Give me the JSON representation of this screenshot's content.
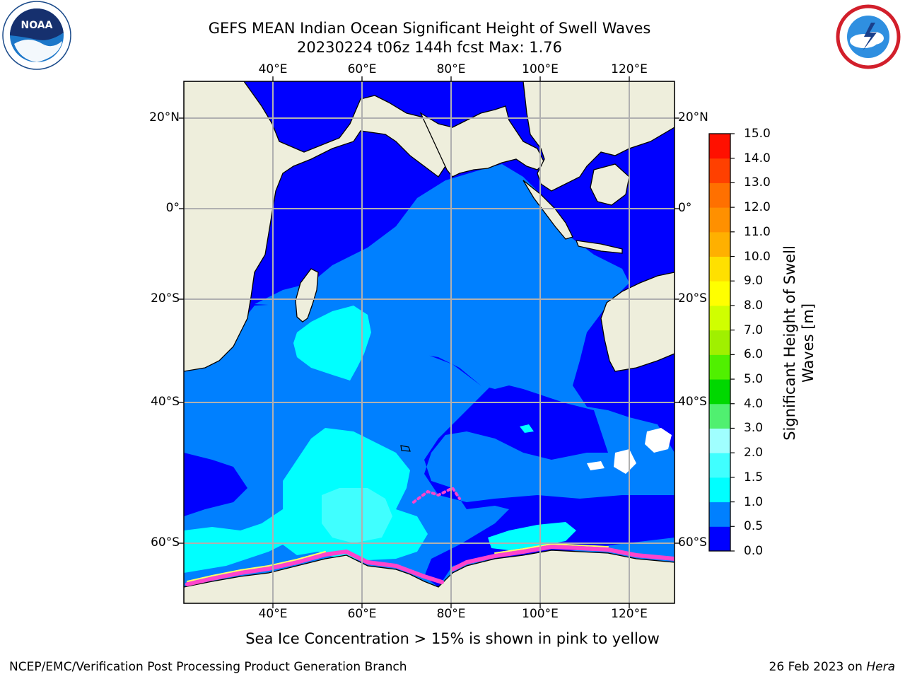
{
  "title_line1": "GEFS MEAN Indian Ocean Significant Height of Swell Waves",
  "title_line2": "20230224 t06z 144h fcst   Max: 1.76",
  "lon_ticks": [
    {
      "lon": 40,
      "label": "40°E"
    },
    {
      "lon": 60,
      "label": "60°E"
    },
    {
      "lon": 80,
      "label": "80°E"
    },
    {
      "lon": 100,
      "label": "100°E"
    },
    {
      "lon": 120,
      "label": "120°E"
    }
  ],
  "lat_ticks": [
    {
      "lat": 20,
      "label": "20°N"
    },
    {
      "lat": 0,
      "label": "0°"
    },
    {
      "lat": -20,
      "label": "20°S"
    },
    {
      "lat": -40,
      "label": "40°S"
    },
    {
      "lat": -60,
      "label": "60°S"
    }
  ],
  "colorbar": {
    "title_line1": "Significant Height of Swell",
    "title_line2": "Waves [m]",
    "labels": [
      "0.0",
      "0.5",
      "1.0",
      "1.5",
      "2.0",
      "3.0",
      "4.0",
      "5.0",
      "6.0",
      "7.0",
      "8.0",
      "9.0",
      "10.0",
      "11.0",
      "12.0",
      "13.0",
      "14.0",
      "15.0"
    ],
    "colors": [
      "#0000ff",
      "#0080ff",
      "#00ffff",
      "#40ffff",
      "#a0ffff",
      "#50f070",
      "#00d800",
      "#50f000",
      "#a0f000",
      "#d0ff00",
      "#ffff00",
      "#ffe000",
      "#ffb000",
      "#ff9000",
      "#ff7000",
      "#ff4000",
      "#ff1000"
    ]
  },
  "legend_colors": {
    "land": "#eeeedc",
    "band_0_0_5": "#0000ff",
    "band_0_5_1_0": "#0080ff",
    "band_1_0_1_5": "#00ffff",
    "band_1_5_2_0": "#40ffff",
    "sea_ice_low": "#ff44cc",
    "sea_ice_high": "#ffff66"
  },
  "footnote": "Sea Ice Concentration > 15% is shown in pink to yellow",
  "credit_left": "NCEP/EMC/Verification Post Processing Product Generation Branch",
  "credit_right_prefix": "26 Feb 2023 on ",
  "credit_right_machine": "Hera",
  "logos": {
    "left": "noaa-logo",
    "left_text": "NOAA",
    "right": "nws-logo"
  }
}
